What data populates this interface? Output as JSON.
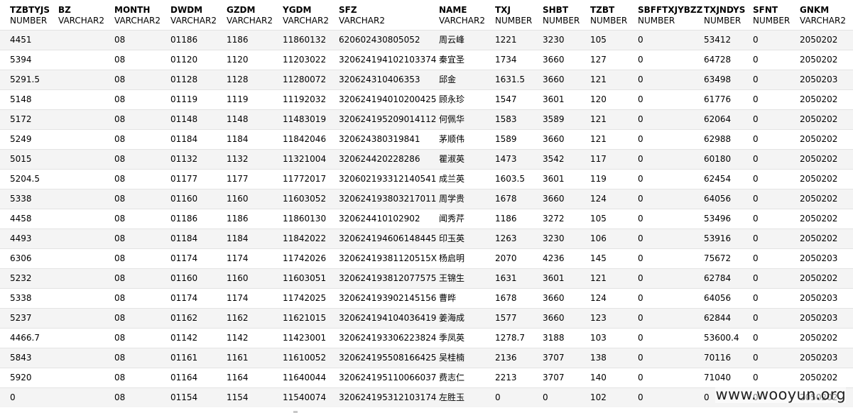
{
  "columns": [
    {
      "name": "TZBTYJS",
      "type": "NUMBER"
    },
    {
      "name": "BZ",
      "type": "VARCHAR2"
    },
    {
      "name": "MONTH",
      "type": "VARCHAR2"
    },
    {
      "name": "DWDM",
      "type": "VARCHAR2"
    },
    {
      "name": "GZDM",
      "type": "VARCHAR2"
    },
    {
      "name": "YGDM",
      "type": "VARCHAR2"
    },
    {
      "name": "SFZ",
      "type": "VARCHAR2"
    },
    {
      "name": "NAME",
      "type": "VARCHAR2"
    },
    {
      "name": "TXJ",
      "type": "NUMBER"
    },
    {
      "name": "SHBT",
      "type": "NUMBER"
    },
    {
      "name": "TZBT",
      "type": "NUMBER"
    },
    {
      "name": "SBFFTXJYBZZ",
      "type": "NUMBER"
    },
    {
      "name": "TXJNDYS",
      "type": "NUMBER"
    },
    {
      "name": "SFNT",
      "type": "NUMBER"
    },
    {
      "name": "GNKM",
      "type": "VARCHAR2"
    }
  ],
  "rows": [
    [
      "4451",
      "",
      "08",
      "01186",
      "1186",
      "11860132",
      "620602430805052",
      "周云峰",
      "1221",
      "3230",
      "105",
      "0",
      "53412",
      "0",
      "2050202"
    ],
    [
      "5394",
      "",
      "08",
      "01120",
      "1120",
      "11203022",
      "320624194102103374",
      "秦宜圣",
      "1734",
      "3660",
      "127",
      "0",
      "64728",
      "0",
      "2050202"
    ],
    [
      "5291.5",
      "",
      "08",
      "01128",
      "1128",
      "11280072",
      "320624310406353",
      "邱金",
      "1631.5",
      "3660",
      "121",
      "0",
      "63498",
      "0",
      "2050203"
    ],
    [
      "5148",
      "",
      "08",
      "01119",
      "1119",
      "11192032",
      "320624194010200425",
      "顾永珍",
      "1547",
      "3601",
      "120",
      "0",
      "61776",
      "0",
      "2050202"
    ],
    [
      "5172",
      "",
      "08",
      "01148",
      "1148",
      "11483019",
      "320624195209014112",
      "何佩华",
      "1583",
      "3589",
      "121",
      "0",
      "62064",
      "0",
      "2050202"
    ],
    [
      "5249",
      "",
      "08",
      "01184",
      "1184",
      "11842046",
      "320624380319841",
      "茅顺伟",
      "1589",
      "3660",
      "121",
      "0",
      "62988",
      "0",
      "2050202"
    ],
    [
      "5015",
      "",
      "08",
      "01132",
      "1132",
      "11321004",
      "320624420228286",
      "瞿淑英",
      "1473",
      "3542",
      "117",
      "0",
      "60180",
      "0",
      "2050202"
    ],
    [
      "5204.5",
      "",
      "08",
      "01177",
      "1177",
      "11772017",
      "320602193312140541",
      "成兰英",
      "1603.5",
      "3601",
      "119",
      "0",
      "62454",
      "0",
      "2050202"
    ],
    [
      "5338",
      "",
      "08",
      "01160",
      "1160",
      "11603052",
      "320624193803217011",
      "周学贵",
      "1678",
      "3660",
      "124",
      "0",
      "64056",
      "0",
      "2050202"
    ],
    [
      "4458",
      "",
      "08",
      "01186",
      "1186",
      "11860130",
      "320624410102902",
      "闻秀芹",
      "1186",
      "3272",
      "105",
      "0",
      "53496",
      "0",
      "2050202"
    ],
    [
      "4493",
      "",
      "08",
      "01184",
      "1184",
      "11842022",
      "320624194606148445",
      "印玉英",
      "1263",
      "3230",
      "106",
      "0",
      "53916",
      "0",
      "2050202"
    ],
    [
      "6306",
      "",
      "08",
      "01174",
      "1174",
      "11742026",
      "32062419381120515X",
      "杨启明",
      "2070",
      "4236",
      "145",
      "0",
      "75672",
      "0",
      "2050203"
    ],
    [
      "5232",
      "",
      "08",
      "01160",
      "1160",
      "11603051",
      "320624193812077575",
      "王锦生",
      "1631",
      "3601",
      "121",
      "0",
      "62784",
      "0",
      "2050202"
    ],
    [
      "5338",
      "",
      "08",
      "01174",
      "1174",
      "11742025",
      "320624193902145156",
      "曹晔",
      "1678",
      "3660",
      "124",
      "0",
      "64056",
      "0",
      "2050203"
    ],
    [
      "5237",
      "",
      "08",
      "01162",
      "1162",
      "11621015",
      "320624194104036419",
      "姜海成",
      "1577",
      "3660",
      "123",
      "0",
      "62844",
      "0",
      "2050203"
    ],
    [
      "4466.7",
      "",
      "08",
      "01142",
      "1142",
      "11423001",
      "320624193306223824",
      "季凤英",
      "1278.7",
      "3188",
      "103",
      "0",
      "53600.4",
      "0",
      "2050202"
    ],
    [
      "5843",
      "",
      "08",
      "01161",
      "1161",
      "11610052",
      "320624195508166425",
      "吴桂楠",
      "2136",
      "3707",
      "138",
      "0",
      "70116",
      "0",
      "2050203"
    ],
    [
      "5920",
      "",
      "08",
      "01164",
      "1164",
      "11640044",
      "320624195110066037",
      "费志仁",
      "2213",
      "3707",
      "140",
      "0",
      "71040",
      "0",
      "2050202"
    ],
    [
      "0",
      "",
      "08",
      "01154",
      "1154",
      "11540074",
      "320624195312103174",
      "左胜玉",
      "0",
      "0",
      "102",
      "0",
      "0",
      "0",
      "2050202"
    ]
  ],
  "watermark": "www.wooyun.org"
}
